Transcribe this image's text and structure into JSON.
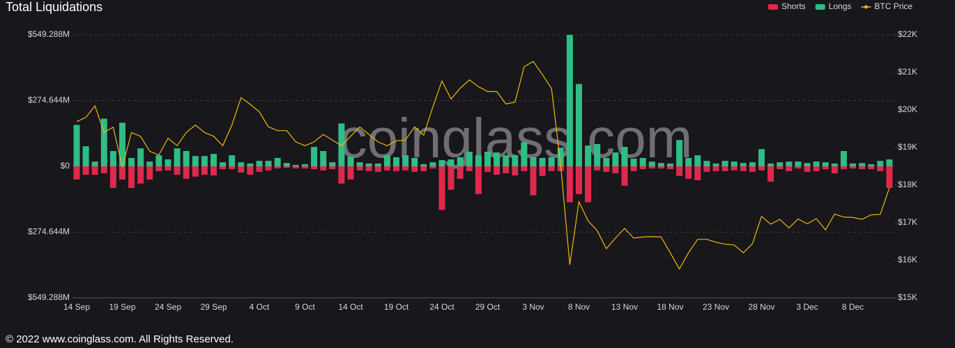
{
  "chart_data": {
    "type": "bar",
    "title": "Total Liquidations",
    "watermark": "coinglass.com",
    "footer": "© 2022 www.coinglass.com. All Rights Reserved.",
    "legend": "top-right",
    "grid": true,
    "categories": [
      "14 Sep",
      null,
      null,
      null,
      null,
      "19 Sep",
      null,
      null,
      null,
      null,
      "24 Sep",
      null,
      null,
      null,
      null,
      "29 Sep",
      null,
      null,
      null,
      null,
      "4 Oct",
      null,
      null,
      null,
      null,
      "9 Oct",
      null,
      null,
      null,
      null,
      "14 Oct",
      null,
      null,
      null,
      null,
      "19 Oct",
      null,
      null,
      null,
      null,
      "24 Oct",
      null,
      null,
      null,
      null,
      "29 Oct",
      null,
      null,
      null,
      null,
      "3 Nov",
      null,
      null,
      null,
      null,
      "8 Nov",
      null,
      null,
      null,
      null,
      "13 Nov",
      null,
      null,
      null,
      null,
      "18 Nov",
      null,
      null,
      null,
      null,
      "23 Nov",
      null,
      null,
      null,
      null,
      "28 Nov",
      null,
      null,
      null,
      null,
      "3 Dec",
      null,
      null,
      null,
      null,
      "8 Dec",
      null,
      null,
      null,
      null
    ],
    "series": [
      {
        "name": "Shorts",
        "color": "#e0284c",
        "values": [
          -55,
          -35,
          -35,
          -29,
          -90,
          -55,
          -90,
          -72,
          -55,
          -20,
          -17,
          -35,
          -52,
          -43,
          -35,
          -38,
          -12,
          -12,
          -26,
          -35,
          -23,
          -17,
          -9,
          -6,
          -9,
          -9,
          -12,
          -17,
          -12,
          -72,
          -55,
          -17,
          -20,
          -23,
          -17,
          -20,
          -17,
          -23,
          -20,
          -9,
          -182,
          -98,
          -52,
          -20,
          -116,
          -23,
          -35,
          -29,
          -38,
          -20,
          -121,
          -40,
          -20,
          -20,
          -150,
          -116,
          -150,
          -17,
          -23,
          -29,
          -81,
          -20,
          -12,
          -9,
          -9,
          -12,
          -40,
          -52,
          -58,
          -23,
          -20,
          -20,
          -17,
          -20,
          -23,
          -17,
          -64,
          -12,
          -20,
          -9,
          -23,
          -20,
          -12,
          -29,
          -12,
          -9,
          -12,
          -12,
          -20,
          -90
        ]
      },
      {
        "name": "Longs",
        "color": "#2ebd85",
        "values": [
          173,
          84,
          20,
          199,
          64,
          182,
          35,
          75,
          20,
          46,
          29,
          75,
          64,
          43,
          43,
          52,
          17,
          46,
          17,
          12,
          23,
          23,
          35,
          14,
          6,
          9,
          81,
          64,
          17,
          179,
          40,
          17,
          12,
          12,
          46,
          38,
          46,
          35,
          9,
          17,
          26,
          29,
          38,
          61,
          46,
          61,
          58,
          46,
          46,
          101,
          38,
          35,
          38,
          78,
          549,
          344,
          87,
          93,
          35,
          58,
          81,
          32,
          35,
          20,
          14,
          12,
          110,
          35,
          46,
          23,
          12,
          23,
          20,
          14,
          17,
          72,
          12,
          17,
          20,
          20,
          14,
          20,
          17,
          12,
          64,
          12,
          14,
          9,
          23,
          29
        ]
      },
      {
        "name": "BTC Price",
        "color": "#f0b90b",
        "axis": "y2",
        "values": [
          19690,
          19800,
          20110,
          19410,
          19540,
          18480,
          19400,
          19300,
          18900,
          18800,
          19250,
          19050,
          19400,
          19600,
          19400,
          19300,
          19050,
          19600,
          20330,
          20150,
          19950,
          19550,
          19450,
          19450,
          19150,
          19050,
          19150,
          19350,
          19200,
          19050,
          19300,
          19550,
          19350,
          19150,
          19050,
          19180,
          19200,
          19550,
          19330,
          20080,
          20770,
          20290,
          20580,
          20800,
          20620,
          20490,
          20490,
          20160,
          20210,
          21150,
          21290,
          20940,
          20570,
          18540,
          15880,
          17560,
          17050,
          16790,
          16310,
          16590,
          16850,
          16590,
          16620,
          16630,
          16620,
          16200,
          15770,
          16200,
          16560,
          16560,
          16480,
          16430,
          16410,
          16200,
          16440,
          17170,
          16960,
          17090,
          16860,
          17100,
          16970,
          17110,
          16810,
          17230,
          17150,
          17140,
          17090,
          17210,
          17220,
          17930
        ]
      }
    ],
    "ylim": [
      -549.288,
      549.288
    ],
    "yticks": [
      {
        "value": -549.288,
        "label": "$549.288M"
      },
      {
        "value": -274.644,
        "label": "$274.644M"
      },
      {
        "value": 0,
        "label": "$0"
      },
      {
        "value": 274.644,
        "label": "$274.644M"
      },
      {
        "value": 549.288,
        "label": "$549.288M"
      }
    ],
    "y2lim": [
      15000,
      22000
    ],
    "y2ticks": [
      {
        "value": 15000,
        "label": "$15K"
      },
      {
        "value": 16000,
        "label": "$16K"
      },
      {
        "value": 17000,
        "label": "$17K"
      },
      {
        "value": 18000,
        "label": "$18K"
      },
      {
        "value": 19000,
        "label": "$19K"
      },
      {
        "value": 20000,
        "label": "$20K"
      },
      {
        "value": 21000,
        "label": "$21K"
      },
      {
        "value": 22000,
        "label": "$22K"
      }
    ]
  }
}
